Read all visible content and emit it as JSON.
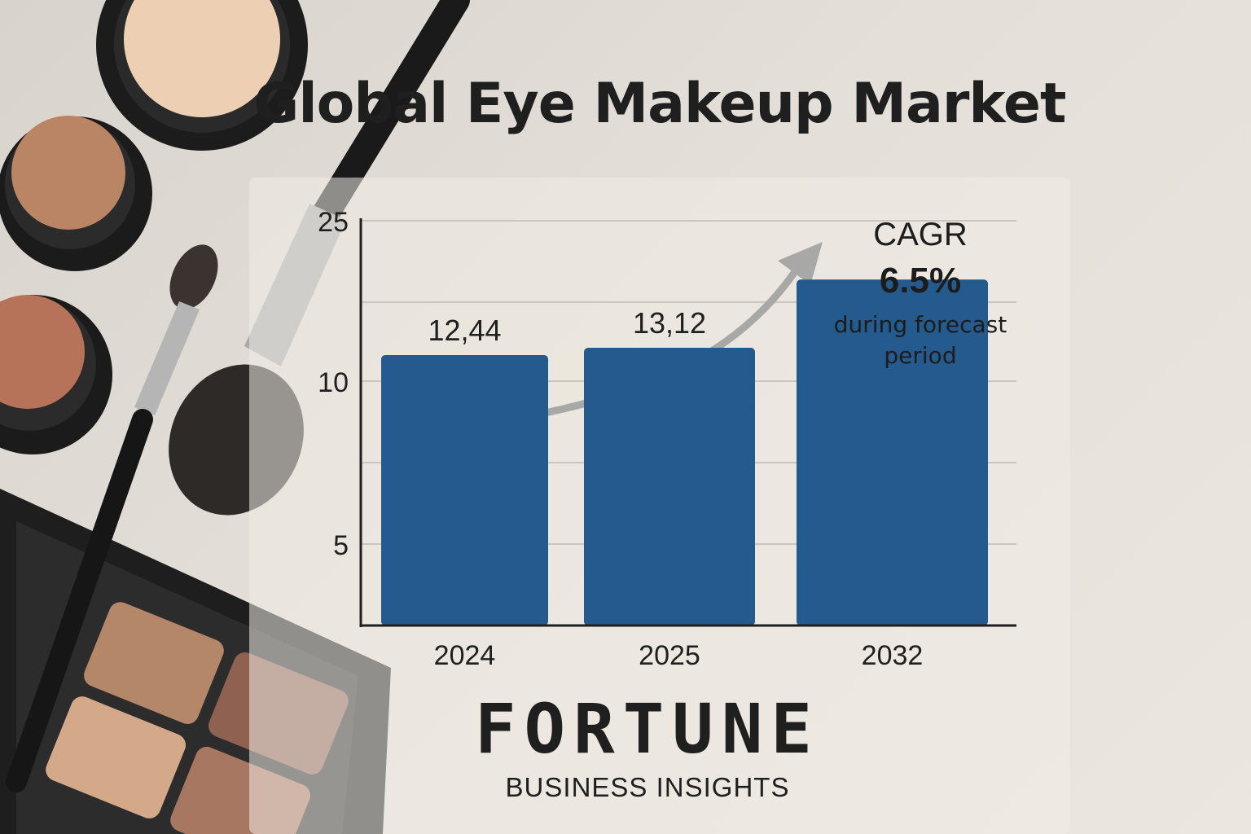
{
  "title": "Global Eye Makeup Market",
  "cagr": {
    "label": "CAGR",
    "value": "6.5%",
    "note": "during forecast period"
  },
  "brand": {
    "name": "FORTUNE",
    "sub": "BUSINESS INSIGHTS"
  },
  "colors": {
    "bar": "#255a8e",
    "arrow": "#a8a8a6",
    "text": "#1f1f1f"
  },
  "chart_data": {
    "type": "bar",
    "categories": [
      "2024",
      "2025",
      "2032"
    ],
    "values": [
      12.44,
      13.12,
      19.5
    ],
    "data_labels": [
      "12,44",
      "13,12",
      ""
    ],
    "y_ticks": [
      {
        "label": "5",
        "value": 5
      },
      {
        "label": "10",
        "value": 10
      },
      {
        "label": "25",
        "value": 25
      }
    ],
    "y_tick_positions": [
      5,
      10,
      25
    ],
    "grid": true,
    "xlabel": "",
    "ylabel": "",
    "trend_arrow": true
  }
}
